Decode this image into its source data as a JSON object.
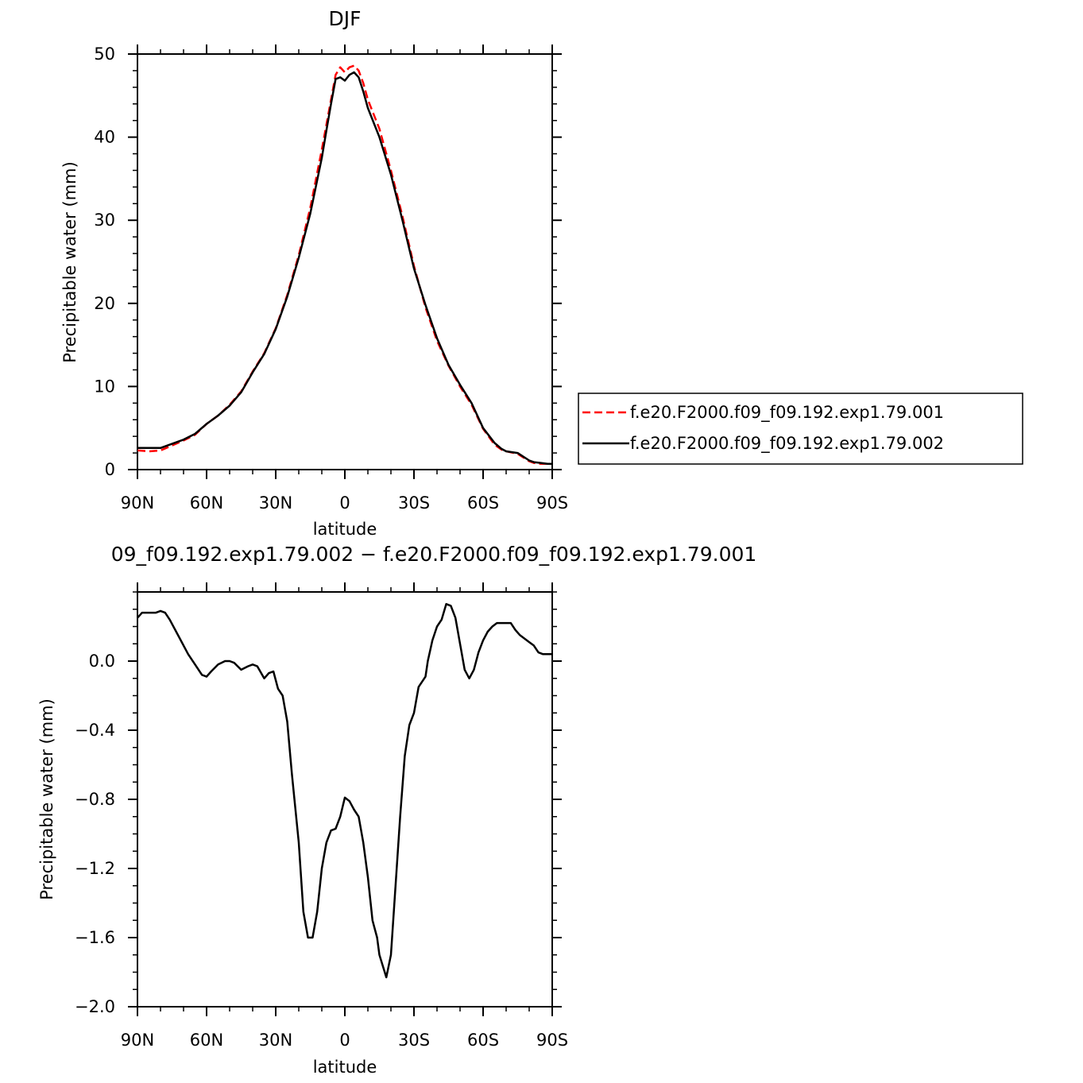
{
  "chart_data": [
    {
      "type": "line",
      "title": "DJF",
      "xlabel": "latitude",
      "ylabel": "Precipitable water (mm)",
      "xlim": [
        90,
        -90
      ],
      "ylim": [
        0,
        50
      ],
      "x_ticks": [
        90,
        60,
        30,
        0,
        -30,
        -60,
        -90
      ],
      "x_tick_labels": [
        "90N",
        "60N",
        "30N",
        "0",
        "30S",
        "60S",
        "90S"
      ],
      "y_ticks": [
        0,
        10,
        20,
        30,
        40,
        50
      ],
      "y_tick_labels": [
        "0",
        "10",
        "20",
        "30",
        "40",
        "50"
      ],
      "legend": {
        "placement": "right",
        "entries": [
          {
            "label": "f.e20.F2000.f09_f09.192.exp1.79.001",
            "color": "#ff0000",
            "dash": "dashed"
          },
          {
            "label": "f.e20.F2000.f09_f09.192.exp1.79.002",
            "color": "#000000",
            "dash": "solid"
          }
        ]
      },
      "series": [
        {
          "name": "f.e20.F2000.f09_f09.192.exp1.79.001",
          "color": "#ff0000",
          "dash": "dashed",
          "x": [
            90,
            85,
            80,
            75,
            70,
            65,
            60,
            55,
            50,
            45,
            40,
            35,
            30,
            25,
            20,
            15,
            10,
            8,
            6,
            4,
            2,
            0,
            -2,
            -4,
            -6,
            -8,
            -10,
            -15,
            -20,
            -25,
            -30,
            -35,
            -40,
            -45,
            -50,
            -55,
            -60,
            -65,
            -68,
            -70,
            -75,
            -80,
            -82,
            -85,
            -88,
            -90
          ],
          "values": [
            2.3,
            2.2,
            2.3,
            2.9,
            3.5,
            4.2,
            5.5,
            6.5,
            7.8,
            9.4,
            11.8,
            14.0,
            17.0,
            21.0,
            25.8,
            31.5,
            38.5,
            41.5,
            44.5,
            47.5,
            48.4,
            47.8,
            48.4,
            48.6,
            48.0,
            46.5,
            44.5,
            41.0,
            36.0,
            30.5,
            24.5,
            19.5,
            15.5,
            12.5,
            10.0,
            7.8,
            4.9,
            3.0,
            2.4,
            2.2,
            1.9,
            1.0,
            0.8,
            0.7,
            0.7,
            0.7
          ]
        },
        {
          "name": "f.e20.F2000.f09_f09.192.exp1.79.002",
          "color": "#000000",
          "dash": "solid",
          "x": [
            90,
            85,
            80,
            75,
            70,
            65,
            60,
            55,
            50,
            45,
            40,
            35,
            30,
            25,
            20,
            15,
            10,
            8,
            6,
            4,
            2,
            0,
            -2,
            -4,
            -6,
            -8,
            -10,
            -15,
            -20,
            -25,
            -30,
            -35,
            -40,
            -45,
            -50,
            -55,
            -60,
            -65,
            -68,
            -70,
            -75,
            -80,
            -82,
            -85,
            -88,
            -90
          ],
          "values": [
            2.6,
            2.6,
            2.6,
            3.1,
            3.6,
            4.3,
            5.5,
            6.5,
            7.7,
            9.3,
            11.7,
            13.9,
            16.9,
            20.8,
            25.5,
            30.8,
            37.5,
            40.8,
            44.0,
            47.0,
            47.2,
            46.8,
            47.5,
            47.8,
            47.2,
            45.5,
            43.5,
            40.0,
            35.5,
            30.0,
            24.2,
            19.8,
            15.8,
            12.6,
            10.2,
            8.0,
            5.0,
            3.2,
            2.5,
            2.2,
            2.0,
            1.1,
            0.9,
            0.8,
            0.7,
            0.7
          ]
        }
      ]
    },
    {
      "type": "line",
      "title": "09_f09.192.exp1.79.002 − f.e20.F2000.f09_f09.192.exp1.79.001",
      "xlabel": "latitude",
      "ylabel": "Precipitable water (mm)",
      "xlim": [
        90,
        -90
      ],
      "ylim": [
        -2.0,
        0.4
      ],
      "x_ticks": [
        90,
        60,
        30,
        0,
        -30,
        -60,
        -90
      ],
      "x_tick_labels": [
        "90N",
        "60N",
        "30N",
        "0",
        "30S",
        "60S",
        "90S"
      ],
      "y_ticks": [
        -2.0,
        -1.6,
        -1.2,
        -0.8,
        -0.4,
        0.0
      ],
      "y_tick_labels": [
        "−2.0",
        "−1.6",
        "−1.2",
        "−0.8",
        "−0.4",
        "0.0"
      ],
      "series": [
        {
          "color": "#000000",
          "dash": "solid",
          "x": [
            90,
            88,
            85,
            82,
            80,
            78,
            76,
            72,
            68,
            65,
            62,
            60,
            58,
            55,
            52,
            50,
            48,
            45,
            42,
            40,
            38,
            35,
            33,
            31,
            29,
            27,
            25,
            23,
            20,
            18,
            16,
            14,
            12,
            10,
            8,
            6,
            4,
            2,
            0,
            -2,
            -4,
            -6,
            -8,
            -10,
            -12,
            -14,
            -15,
            -18,
            -20,
            -22,
            -24,
            -26,
            -28,
            -30,
            -32,
            -35,
            -36,
            -38,
            -40,
            -42,
            -44,
            -46,
            -48,
            -50,
            -52,
            -54,
            -56,
            -58,
            -60,
            -62,
            -64,
            -66,
            -68,
            -70,
            -72,
            -74,
            -76,
            -78,
            -80,
            -82,
            -84,
            -86,
            -88,
            -90
          ],
          "values": [
            0.25,
            0.28,
            0.28,
            0.28,
            0.29,
            0.28,
            0.24,
            0.14,
            0.04,
            -0.02,
            -0.08,
            -0.09,
            -0.06,
            -0.02,
            0.0,
            0.0,
            -0.01,
            -0.05,
            -0.03,
            -0.02,
            -0.03,
            -0.1,
            -0.07,
            -0.06,
            -0.16,
            -0.2,
            -0.35,
            -0.65,
            -1.05,
            -1.45,
            -1.6,
            -1.6,
            -1.45,
            -1.2,
            -1.05,
            -0.98,
            -0.97,
            -0.9,
            -0.79,
            -0.81,
            -0.86,
            -0.9,
            -1.05,
            -1.25,
            -1.5,
            -1.6,
            -1.7,
            -1.83,
            -1.7,
            -1.3,
            -0.9,
            -0.55,
            -0.37,
            -0.3,
            -0.15,
            -0.09,
            0.0,
            0.12,
            0.2,
            0.24,
            0.33,
            0.32,
            0.25,
            0.1,
            -0.05,
            -0.1,
            -0.05,
            0.05,
            0.12,
            0.17,
            0.2,
            0.22,
            0.22,
            0.22,
            0.22,
            0.18,
            0.15,
            0.13,
            0.11,
            0.09,
            0.05,
            0.04,
            0.04,
            0.04
          ]
        }
      ]
    }
  ]
}
